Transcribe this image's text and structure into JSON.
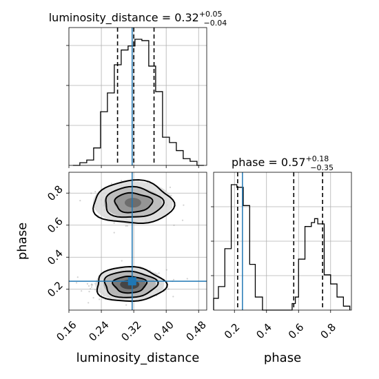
{
  "chart_data": {
    "type": "corner",
    "parameters": [
      "luminosity_distance",
      "phase"
    ],
    "truth": {
      "luminosity_distance": 0.316,
      "phase": 0.25
    },
    "titles": [
      {
        "parameter": "luminosity_distance",
        "prefix": "luminosity_distance = ",
        "median": "0.32",
        "plus": "+0.05",
        "minus": "−0.04"
      },
      {
        "parameter": "phase",
        "prefix": "phase = ",
        "median": "0.57",
        "plus": "+0.18",
        "minus": "−0.35"
      }
    ],
    "luminosity_distance_hist": {
      "xlim": [
        0.16,
        0.5
      ],
      "edges": [
        0.17,
        0.187,
        0.204,
        0.221,
        0.238,
        0.255,
        0.272,
        0.289,
        0.306,
        0.323,
        0.34,
        0.357,
        0.374,
        0.391,
        0.408,
        0.425,
        0.442,
        0.459,
        0.476,
        0.493
      ],
      "counts": [
        0,
        2,
        4,
        13,
        40,
        54,
        75,
        86,
        89,
        94,
        93,
        74,
        55,
        21,
        17,
        11,
        5,
        3,
        0
      ],
      "quantiles": [
        0.28,
        0.32,
        0.37
      ]
    },
    "phase_hist": {
      "xlim": [
        0.07,
        0.93
      ],
      "edges": [
        0.07,
        0.1,
        0.14,
        0.18,
        0.215,
        0.255,
        0.295,
        0.33,
        0.375,
        0.56,
        0.58,
        0.6,
        0.64,
        0.68,
        0.7,
        0.72,
        0.76,
        0.8,
        0.84,
        0.88,
        0.92
      ],
      "counts": [
        9,
        18,
        47,
        96,
        94,
        80,
        35,
        10,
        0,
        5,
        10,
        39,
        64,
        67,
        70,
        66,
        27,
        20,
        10,
        3
      ],
      "quantiles": [
        0.22,
        0.57,
        0.75
      ]
    },
    "joint": {
      "xlim": [
        0.16,
        0.5
      ],
      "ylim": [
        0.07,
        0.93
      ],
      "modes": [
        {
          "luminosity_distance": 0.318,
          "phase": 0.74
        },
        {
          "luminosity_distance": 0.31,
          "phase": 0.23
        }
      ]
    },
    "x_ticks": [
      "0.16",
      "0.24",
      "0.32",
      "0.40",
      "0.48"
    ],
    "y_ticks": [
      "0.2",
      "0.4",
      "0.6",
      "0.8"
    ],
    "phase_ticks": [
      "0.2",
      "0.4",
      "0.6",
      "0.8"
    ],
    "xlabel_left": "luminosity_distance",
    "xlabel_right": "phase",
    "ylabel": "phase",
    "grid": true,
    "colors": {
      "truth": "#1f77b4",
      "hist": "#000000",
      "grid": "#b0b0b0",
      "scatter": "#9a9a9a"
    }
  }
}
